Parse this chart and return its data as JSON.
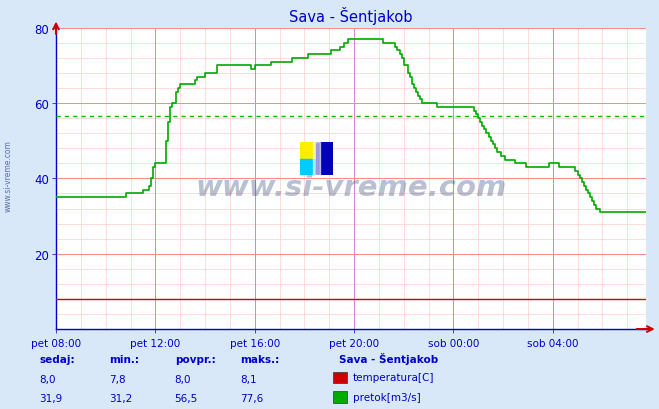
{
  "title": "Sava - Šentjakob",
  "bg_color": "#d8e8f8",
  "plot_bg_color": "#ffffff",
  "grid_color_major": "#ff8888",
  "grid_color_minor": "#ffcccc",
  "vgrid_color_major": "#cc88cc",
  "ylabel_color": "#0000cc",
  "xlabel_color": "#0000cc",
  "title_color": "#0000cc",
  "ylim": [
    0,
    80
  ],
  "yticks": [
    20,
    40,
    60,
    80
  ],
  "xlabel_ticks": [
    "pet 08:00",
    "pet 12:00",
    "pet 16:00",
    "pet 20:00",
    "sob 00:00",
    "sob 04:00"
  ],
  "avg_line_value": 56.5,
  "avg_line_color": "#00bb00",
  "watermark": "www.si-vreme.com",
  "legend_title": "Sava - Šentjakob",
  "legend_items": [
    {
      "label": "temperatura[C]",
      "color": "#cc0000"
    },
    {
      "label": "pretok[m3/s]",
      "color": "#00aa00"
    }
  ],
  "stats_headers": [
    "sedaj:",
    "min.:",
    "povpr.:",
    "maks.:"
  ],
  "stats_temp": [
    "8,0",
    "7,8",
    "8,0",
    "8,1"
  ],
  "stats_pretok": [
    "31,9",
    "31,2",
    "56,5",
    "77,6"
  ],
  "flow_y": [
    35,
    35,
    35,
    35,
    35,
    35,
    35,
    35,
    35,
    35,
    35,
    35,
    35,
    35,
    35,
    35,
    35,
    35,
    35,
    35,
    35,
    35,
    35,
    35,
    35,
    35,
    35,
    35,
    35,
    35,
    35,
    35,
    35,
    35,
    36,
    36,
    36,
    36,
    36,
    36,
    36,
    36,
    37,
    37,
    37,
    38,
    40,
    43,
    44,
    44,
    44,
    44,
    44,
    50,
    55,
    59,
    60,
    60,
    63,
    64,
    65,
    65,
    65,
    65,
    65,
    65,
    65,
    66,
    67,
    67,
    67,
    67,
    68,
    68,
    68,
    68,
    68,
    68,
    70,
    70,
    70,
    70,
    70,
    70,
    70,
    70,
    70,
    70,
    70,
    70,
    70,
    70,
    70,
    70,
    69,
    69,
    70,
    70,
    70,
    70,
    70,
    70,
    70,
    70,
    71,
    71,
    71,
    71,
    71,
    71,
    71,
    71,
    71,
    71,
    72,
    72,
    72,
    72,
    72,
    72,
    72,
    72,
    73,
    73,
    73,
    73,
    73,
    73,
    73,
    73,
    73,
    73,
    73,
    74,
    74,
    74,
    74,
    75,
    75,
    76,
    76,
    77,
    77,
    77,
    77,
    77,
    77,
    77,
    77,
    77,
    77,
    77,
    77,
    77,
    77,
    77,
    77,
    77,
    76,
    76,
    76,
    76,
    76,
    76,
    75,
    74,
    73,
    72,
    70,
    70,
    68,
    67,
    65,
    64,
    63,
    62,
    61,
    60,
    60,
    60,
    60,
    60,
    60,
    60,
    59,
    59,
    59,
    59,
    59,
    59,
    59,
    59,
    59,
    59,
    59,
    59,
    59,
    59,
    59,
    59,
    59,
    59,
    58,
    57,
    56,
    55,
    54,
    53,
    52,
    51,
    50,
    49,
    48,
    47,
    47,
    46,
    46,
    45,
    45,
    45,
    45,
    45,
    44,
    44,
    44,
    44,
    44,
    43,
    43,
    43,
    43,
    43,
    43,
    43,
    43,
    43,
    43,
    43,
    44,
    44,
    44,
    44,
    44,
    43,
    43,
    43,
    43,
    43,
    43,
    43,
    43,
    42,
    41,
    40,
    39,
    38,
    37,
    36,
    35,
    34,
    33,
    32,
    32,
    31,
    31,
    31,
    31,
    31,
    31,
    31,
    31,
    31,
    31,
    31,
    31,
    31,
    31,
    31,
    31,
    31,
    31,
    31,
    31,
    31,
    31,
    31
  ],
  "temp_y": [
    8,
    8,
    8,
    8,
    8,
    8,
    8,
    8,
    8,
    8,
    8,
    8,
    8,
    8,
    8,
    8,
    8,
    8,
    8,
    8,
    8,
    8,
    8,
    8,
    8,
    8,
    8,
    8,
    8,
    8,
    8,
    8,
    8,
    8,
    8,
    8,
    8,
    8,
    8,
    8,
    8,
    8,
    8,
    8,
    8,
    8,
    8,
    8,
    8,
    8,
    8,
    8,
    8,
    8,
    8,
    8,
    8,
    8,
    8,
    8,
    8,
    8,
    8,
    8,
    8,
    8,
    8,
    8,
    8,
    8,
    8,
    8,
    8,
    8,
    8,
    8,
    8,
    8,
    8,
    8,
    8,
    8,
    8,
    8,
    8,
    8,
    8,
    8,
    8,
    8,
    8,
    8,
    8,
    8,
    8,
    8,
    8,
    8,
    8,
    8,
    8,
    8,
    8,
    8,
    8,
    8,
    8,
    8,
    8,
    8,
    8,
    8,
    8,
    8,
    8,
    8,
    8,
    8,
    8,
    8,
    8,
    8,
    8,
    8,
    8,
    8,
    8,
    8,
    8,
    8,
    8,
    8,
    8,
    8,
    8,
    8,
    8,
    8,
    8,
    8,
    8,
    8,
    8,
    8,
    8,
    8,
    8,
    8,
    8,
    8,
    8,
    8,
    8,
    8,
    8,
    8,
    8,
    8,
    8,
    8,
    8,
    8,
    8,
    8,
    8,
    8,
    8,
    8,
    8,
    8,
    8,
    8,
    8,
    8,
    8,
    8,
    8,
    8,
    8,
    8,
    8,
    8,
    8,
    8,
    8,
    8,
    8,
    8,
    8,
    8,
    8,
    8,
    8,
    8,
    8,
    8,
    8,
    8,
    8,
    8,
    8,
    8,
    8,
    8,
    8,
    8,
    8,
    8,
    8,
    8,
    8,
    8,
    8,
    8,
    8,
    8,
    8,
    8,
    8,
    8,
    8,
    8,
    8,
    8,
    8,
    8,
    8,
    8,
    8,
    8,
    8,
    8,
    8,
    8,
    8,
    8,
    8,
    8,
    8,
    8,
    8,
    8,
    8,
    8,
    8,
    8,
    8,
    8,
    8,
    8,
    8,
    8,
    8,
    8,
    8,
    8,
    8,
    8,
    8,
    8,
    8,
    8,
    8,
    8,
    8,
    8,
    8,
    8,
    8,
    8,
    8,
    8,
    8,
    8,
    8,
    8,
    8,
    8,
    8,
    8,
    8,
    8,
    8,
    8,
    8,
    8
  ],
  "n_points": 286,
  "x_tick_positions": [
    0,
    48,
    96,
    144,
    192,
    240
  ]
}
